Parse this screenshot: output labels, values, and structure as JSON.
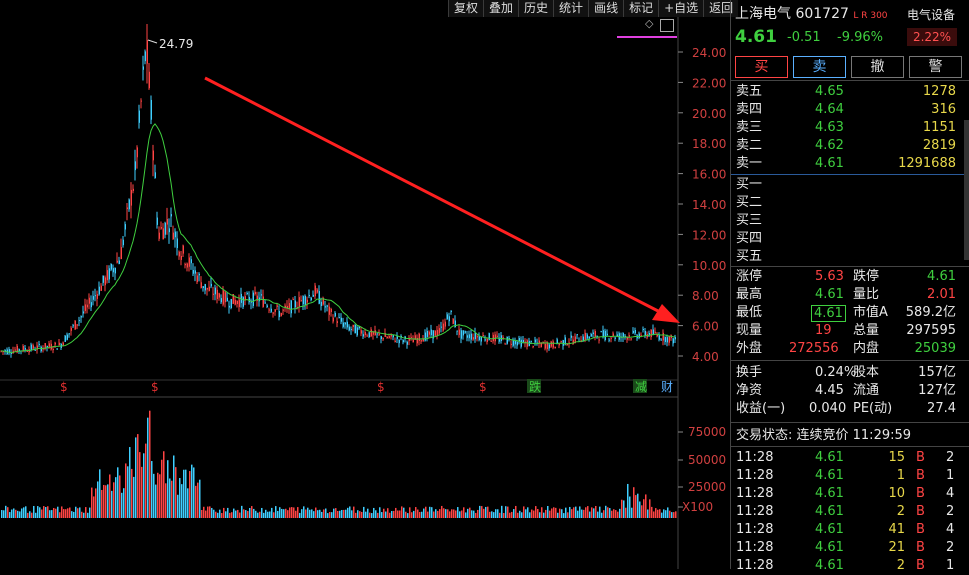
{
  "toolbar": {
    "buttons": [
      "复权",
      "叠加",
      "历史",
      "统计",
      "画线",
      "标记",
      "+自选",
      "返回"
    ]
  },
  "stock": {
    "name": "上海电气",
    "code": "601727",
    "tags": "L R 300",
    "sector": "电气设备",
    "sector_change": "2.22%",
    "price": "4.61",
    "change": "-0.51",
    "change_pct": "-9.96%"
  },
  "actions": [
    "买",
    "卖",
    "撤",
    "警"
  ],
  "order_book": {
    "asks": [
      {
        "label": "卖五",
        "price": "4.65",
        "vol": "1278"
      },
      {
        "label": "卖四",
        "price": "4.64",
        "vol": "316"
      },
      {
        "label": "卖三",
        "price": "4.63",
        "vol": "1151"
      },
      {
        "label": "卖二",
        "price": "4.62",
        "vol": "2819"
      },
      {
        "label": "卖一",
        "price": "4.61",
        "vol": "1291688"
      }
    ],
    "bids": [
      {
        "label": "买一"
      },
      {
        "label": "买二"
      },
      {
        "label": "买三"
      },
      {
        "label": "买四"
      },
      {
        "label": "买五"
      }
    ]
  },
  "stats": [
    {
      "l1": "涨停",
      "v1": "5.63",
      "c1": "red",
      "l2": "跌停",
      "v2": "4.61",
      "c2": "green"
    },
    {
      "l1": "最高",
      "v1": "4.61",
      "c1": "green",
      "l2": "量比",
      "v2": "2.01",
      "c2": "red"
    },
    {
      "l1": "最低",
      "v1": "4.61",
      "c1": "green",
      "l2": "市值A",
      "v2": "589.2亿",
      "c2": "white"
    },
    {
      "l1": "现量",
      "v1": "19",
      "c1": "red",
      "l2": "总量",
      "v2": "297595",
      "c2": "white"
    },
    {
      "l1": "外盘",
      "v1": "272556",
      "c1": "red",
      "l2": "内盘",
      "v2": "25039",
      "c2": "green"
    }
  ],
  "fundamentals": [
    {
      "l1": "换手",
      "v1": "0.24%",
      "l2": "股本",
      "v2": "157亿"
    },
    {
      "l1": "净资",
      "v1": "4.45",
      "l2": "流通",
      "v2": "127亿"
    },
    {
      "l1": "收益(一)",
      "v1": "0.040",
      "l2": "PE(动)",
      "v2": "27.4"
    }
  ],
  "trade_status": "交易状态: 连续竞价 11:29:59",
  "ticks": [
    {
      "time": "11:28",
      "price": "4.61",
      "vol": "15",
      "side": "B",
      "n": "2"
    },
    {
      "time": "11:28",
      "price": "4.61",
      "vol": "1",
      "side": "B",
      "n": "1"
    },
    {
      "time": "11:28",
      "price": "4.61",
      "vol": "10",
      "side": "B",
      "n": "4"
    },
    {
      "time": "11:28",
      "price": "4.61",
      "vol": "2",
      "side": "B",
      "n": "2"
    },
    {
      "time": "11:28",
      "price": "4.61",
      "vol": "41",
      "side": "B",
      "n": "4"
    },
    {
      "time": "11:28",
      "price": "4.61",
      "vol": "21",
      "side": "B",
      "n": "2"
    },
    {
      "time": "11:28",
      "price": "4.61",
      "vol": "2",
      "side": "B",
      "n": "1"
    }
  ],
  "chart": {
    "peak_label": "24.79",
    "y_ticks": [
      "24.00",
      "22.00",
      "20.00",
      "18.00",
      "16.00",
      "14.00",
      "12.00",
      "10.00",
      "8.00",
      "6.00",
      "4.00"
    ],
    "vol_ticks": [
      "75000",
      "50000",
      "25000",
      "X100"
    ],
    "event_marks": [
      {
        "text": "$",
        "x": 65,
        "color": "#e03030"
      },
      {
        "text": "$",
        "x": 156,
        "color": "#e03030"
      },
      {
        "text": "$",
        "x": 382,
        "color": "#e03030"
      },
      {
        "text": "$",
        "x": 484,
        "color": "#e03030"
      },
      {
        "text": "跌",
        "x": 534,
        "color": "#3fcf3f",
        "boxed": true
      },
      {
        "text": "减",
        "x": 640,
        "color": "#3fcf3f",
        "boxed": true
      },
      {
        "text": "财",
        "x": 666,
        "color": "#5ab0ff"
      }
    ]
  },
  "colors": {
    "up": "#ff4444",
    "down": "#3fcf3f",
    "accent": "#e8d84a",
    "ma": "#3fcf3f",
    "arrow": "#ff2020"
  }
}
